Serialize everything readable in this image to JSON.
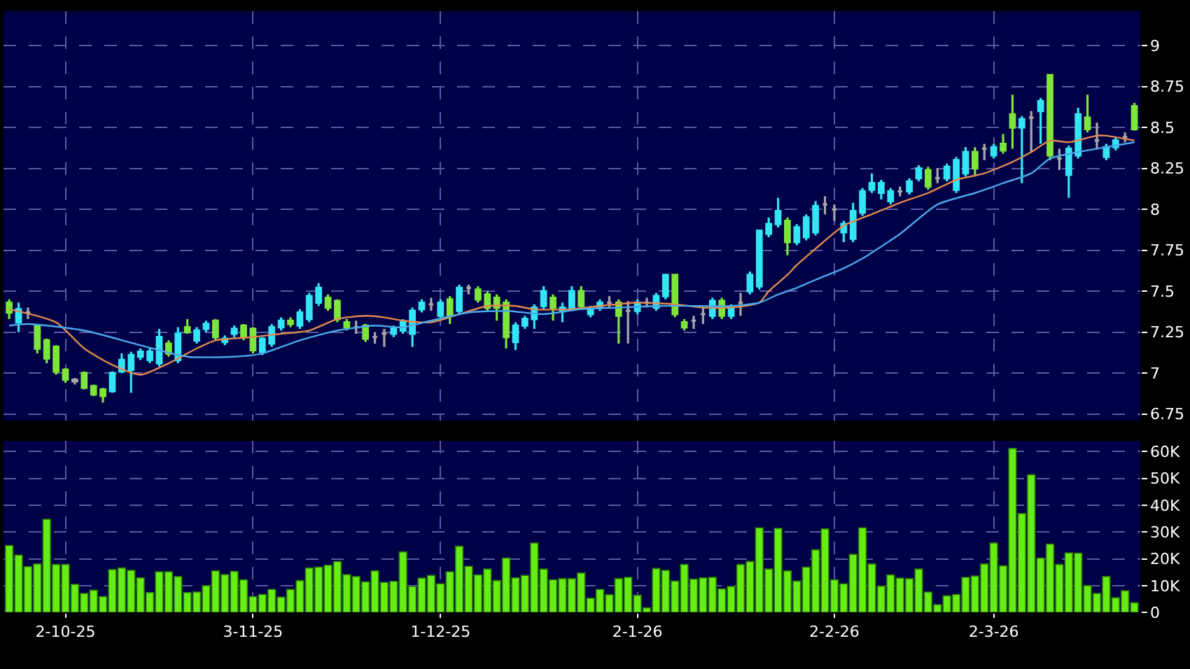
{
  "chart_data": [
    {
      "type": "candlestick",
      "categories": [
        null,
        null,
        null,
        null,
        null,
        null,
        null,
        null,
        null,
        null,
        null,
        null,
        null,
        null,
        null,
        null,
        null,
        null,
        null,
        null,
        null,
        null,
        null,
        null,
        null,
        null,
        null,
        null,
        null,
        null,
        null,
        null,
        null,
        null,
        null,
        null,
        null,
        null,
        null,
        null,
        null,
        null,
        null,
        null,
        null,
        null,
        null,
        null,
        null,
        null,
        null,
        null,
        null,
        null,
        null,
        null,
        null,
        null,
        null,
        null,
        null,
        null,
        null,
        null,
        null,
        null,
        null,
        null,
        null,
        null,
        null,
        null,
        null,
        null,
        null,
        null,
        null,
        null,
        null,
        null,
        null,
        null,
        null,
        null,
        null,
        null,
        null,
        null,
        null,
        null,
        null,
        null,
        null,
        null,
        null,
        null,
        null,
        null,
        null,
        null,
        null,
        null,
        null,
        null,
        null,
        null,
        null,
        null,
        null,
        null,
        null,
        null,
        null,
        null,
        null,
        null,
        null,
        null,
        null,
        null,
        null
      ],
      "ohlc": [
        [
          7.43,
          7.45,
          7.33,
          7.37
        ],
        [
          7.31,
          7.43,
          7.25,
          7.39
        ],
        [
          7.37,
          7.4,
          7.33,
          7.37
        ],
        [
          7.29,
          7.3,
          7.12,
          7.15
        ],
        [
          7.2,
          7.21,
          7.06,
          7.09
        ],
        [
          7.16,
          7.17,
          6.99,
          7.01
        ],
        [
          7.02,
          7.03,
          6.94,
          6.96
        ],
        [
          6.96,
          6.97,
          6.93,
          6.95
        ],
        [
          7.0,
          7.01,
          6.9,
          6.91
        ],
        [
          6.92,
          6.93,
          6.86,
          6.87
        ],
        [
          6.9,
          6.91,
          6.82,
          6.86
        ],
        [
          6.89,
          7.01,
          6.88,
          7.0
        ],
        [
          7.01,
          7.12,
          7.0,
          7.08
        ],
        [
          7.02,
          7.13,
          6.88,
          7.11
        ],
        [
          7.1,
          7.15,
          7.08,
          7.13
        ],
        [
          7.08,
          7.15,
          7.06,
          7.13
        ],
        [
          7.06,
          7.27,
          7.04,
          7.22
        ],
        [
          7.18,
          7.2,
          7.1,
          7.12
        ],
        [
          7.08,
          7.28,
          7.06,
          7.24
        ],
        [
          7.28,
          7.33,
          7.24,
          7.25
        ],
        [
          7.2,
          7.28,
          7.18,
          7.26
        ],
        [
          7.27,
          7.32,
          7.25,
          7.3
        ],
        [
          7.32,
          7.33,
          7.2,
          7.22
        ],
        [
          7.19,
          7.23,
          7.17,
          7.21
        ],
        [
          7.24,
          7.29,
          7.22,
          7.27
        ],
        [
          7.29,
          7.3,
          7.2,
          7.22
        ],
        [
          7.27,
          7.28,
          7.12,
          7.14
        ],
        [
          7.13,
          7.22,
          7.11,
          7.21
        ],
        [
          7.18,
          7.3,
          7.16,
          7.28
        ],
        [
          7.28,
          7.34,
          7.26,
          7.32
        ],
        [
          7.32,
          7.34,
          7.28,
          7.3
        ],
        [
          7.29,
          7.39,
          7.27,
          7.37
        ],
        [
          7.33,
          7.49,
          7.31,
          7.47
        ],
        [
          7.43,
          7.55,
          7.41,
          7.52
        ],
        [
          7.46,
          7.48,
          7.38,
          7.4
        ],
        [
          7.44,
          7.45,
          7.31,
          7.33
        ],
        [
          7.31,
          7.33,
          7.26,
          7.28
        ],
        [
          7.28,
          7.32,
          7.24,
          7.28
        ],
        [
          7.29,
          7.3,
          7.19,
          7.21
        ],
        [
          7.22,
          7.25,
          7.18,
          7.22
        ],
        [
          7.24,
          7.27,
          7.16,
          7.24
        ],
        [
          7.24,
          7.29,
          7.22,
          7.27
        ],
        [
          7.26,
          7.33,
          7.24,
          7.31
        ],
        [
          7.24,
          7.4,
          7.16,
          7.38
        ],
        [
          7.39,
          7.45,
          7.37,
          7.43
        ],
        [
          7.42,
          7.46,
          7.38,
          7.42
        ],
        [
          7.35,
          7.45,
          7.33,
          7.43
        ],
        [
          7.45,
          7.47,
          7.3,
          7.35
        ],
        [
          7.38,
          7.54,
          7.36,
          7.52
        ],
        [
          7.52,
          7.54,
          7.48,
          7.52
        ],
        [
          7.51,
          7.53,
          7.43,
          7.45
        ],
        [
          7.48,
          7.5,
          7.38,
          7.4
        ],
        [
          7.46,
          7.48,
          7.32,
          7.4
        ],
        [
          7.43,
          7.45,
          7.15,
          7.22
        ],
        [
          7.19,
          7.31,
          7.14,
          7.29
        ],
        [
          7.29,
          7.35,
          7.27,
          7.33
        ],
        [
          7.33,
          7.42,
          7.27,
          7.4
        ],
        [
          7.41,
          7.53,
          7.39,
          7.5
        ],
        [
          7.46,
          7.48,
          7.32,
          7.4
        ],
        [
          7.38,
          7.43,
          7.31,
          7.4
        ],
        [
          7.4,
          7.53,
          7.38,
          7.5
        ],
        [
          7.5,
          7.53,
          7.39,
          7.41
        ],
        [
          7.36,
          7.41,
          7.34,
          7.39
        ],
        [
          7.4,
          7.45,
          7.38,
          7.43
        ],
        [
          7.43,
          7.47,
          7.4,
          7.43
        ],
        [
          7.43,
          7.45,
          7.18,
          7.35
        ],
        [
          7.38,
          7.44,
          7.18,
          7.38
        ],
        [
          7.38,
          7.45,
          7.36,
          7.43
        ],
        [
          7.43,
          7.46,
          7.4,
          7.43
        ],
        [
          7.4,
          7.49,
          7.38,
          7.47
        ],
        [
          7.47,
          7.6,
          7.45,
          7.6
        ],
        [
          7.6,
          7.6,
          7.34,
          7.36
        ],
        [
          7.31,
          7.33,
          7.26,
          7.28
        ],
        [
          7.32,
          7.35,
          7.27,
          7.32
        ],
        [
          7.36,
          7.4,
          7.3,
          7.36
        ],
        [
          7.35,
          7.46,
          7.33,
          7.44
        ],
        [
          7.44,
          7.46,
          7.33,
          7.35
        ],
        [
          7.35,
          7.42,
          7.33,
          7.4
        ],
        [
          7.43,
          7.49,
          7.35,
          7.43
        ],
        [
          7.5,
          7.62,
          7.48,
          7.6
        ],
        [
          7.53,
          7.87,
          7.51,
          7.87
        ],
        [
          7.85,
          7.95,
          7.83,
          7.91
        ],
        [
          7.91,
          8.07,
          7.89,
          7.99
        ],
        [
          7.93,
          7.95,
          7.72,
          7.8
        ],
        [
          7.8,
          7.91,
          7.78,
          7.89
        ],
        [
          7.83,
          7.97,
          7.81,
          7.95
        ],
        [
          7.86,
          8.05,
          7.84,
          8.02
        ],
        [
          8.03,
          8.08,
          7.97,
          8.03
        ],
        [
          8.0,
          8.03,
          7.93,
          8.0
        ],
        [
          7.86,
          7.93,
          7.8,
          7.91
        ],
        [
          7.82,
          8.04,
          7.8,
          7.99
        ],
        [
          7.98,
          8.13,
          7.96,
          8.11
        ],
        [
          8.12,
          8.22,
          8.1,
          8.16
        ],
        [
          8.1,
          8.18,
          8.06,
          8.16
        ],
        [
          8.05,
          8.13,
          8.03,
          8.11
        ],
        [
          8.11,
          8.14,
          8.08,
          8.11
        ],
        [
          8.11,
          8.19,
          8.09,
          8.17
        ],
        [
          8.19,
          8.27,
          8.17,
          8.25
        ],
        [
          8.24,
          8.26,
          8.12,
          8.14
        ],
        [
          8.19,
          8.25,
          8.16,
          8.19
        ],
        [
          8.19,
          8.28,
          8.17,
          8.26
        ],
        [
          8.12,
          8.32,
          8.1,
          8.3
        ],
        [
          8.22,
          8.38,
          8.2,
          8.35
        ],
        [
          8.35,
          8.38,
          8.2,
          8.25
        ],
        [
          8.37,
          8.4,
          8.3,
          8.37
        ],
        [
          8.33,
          8.4,
          8.31,
          8.38
        ],
        [
          8.4,
          8.46,
          8.34,
          8.36
        ],
        [
          8.58,
          8.7,
          8.37,
          8.5
        ],
        [
          8.5,
          8.57,
          8.16,
          8.55
        ],
        [
          8.56,
          8.6,
          8.35,
          8.56
        ],
        [
          8.6,
          8.68,
          8.4,
          8.66
        ],
        [
          8.82,
          8.82,
          8.3,
          8.33
        ],
        [
          8.31,
          8.37,
          8.24,
          8.31
        ],
        [
          8.21,
          8.39,
          8.07,
          8.37
        ],
        [
          8.33,
          8.62,
          8.31,
          8.58
        ],
        [
          8.56,
          8.7,
          8.47,
          8.49
        ],
        [
          8.42,
          8.53,
          8.37,
          8.42
        ],
        [
          8.32,
          8.4,
          8.3,
          8.38
        ],
        [
          8.38,
          8.44,
          8.36,
          8.42
        ],
        [
          8.44,
          8.47,
          8.41,
          8.44
        ],
        [
          8.63,
          8.65,
          8.48,
          8.49
        ]
      ],
      "colors": [
        "#7ee63a",
        "#33e5f5",
        "#a8a8a8",
        "#7ee63a",
        "#7ee63a",
        "#7ee63a",
        "#7ee63a",
        "#a8a8a8",
        "#7ee63a",
        "#7ee63a",
        "#7ee63a",
        "#33e5f5",
        "#33e5f5",
        "#33e5f5",
        "#33e5f5",
        "#33e5f5",
        "#33e5f5",
        "#7ee63a",
        "#33e5f5",
        "#7ee63a",
        "#33e5f5",
        "#33e5f5",
        "#7ee63a",
        "#33e5f5",
        "#33e5f5",
        "#7ee63a",
        "#7ee63a",
        "#33e5f5",
        "#33e5f5",
        "#33e5f5",
        "#7ee63a",
        "#33e5f5",
        "#33e5f5",
        "#33e5f5",
        "#7ee63a",
        "#7ee63a",
        "#7ee63a",
        "#a8a8a8",
        "#7ee63a",
        "#a8a8a8",
        "#a8a8a8",
        "#33e5f5",
        "#33e5f5",
        "#33e5f5",
        "#33e5f5",
        "#a8a8a8",
        "#33e5f5",
        "#7ee63a",
        "#33e5f5",
        "#a8a8a8",
        "#7ee63a",
        "#7ee63a",
        "#7ee63a",
        "#7ee63a",
        "#33e5f5",
        "#33e5f5",
        "#33e5f5",
        "#33e5f5",
        "#7ee63a",
        "#33e5f5",
        "#33e5f5",
        "#7ee63a",
        "#33e5f5",
        "#33e5f5",
        "#a8a8a8",
        "#7ee63a",
        "#a8a8a8",
        "#33e5f5",
        "#a8a8a8",
        "#33e5f5",
        "#33e5f5",
        "#7ee63a",
        "#7ee63a",
        "#a8a8a8",
        "#a8a8a8",
        "#33e5f5",
        "#7ee63a",
        "#33e5f5",
        "#a8a8a8",
        "#33e5f5",
        "#33e5f5",
        "#33e5f5",
        "#33e5f5",
        "#7ee63a",
        "#33e5f5",
        "#33e5f5",
        "#33e5f5",
        "#a8a8a8",
        "#a8a8a8",
        "#33e5f5",
        "#33e5f5",
        "#33e5f5",
        "#33e5f5",
        "#33e5f5",
        "#33e5f5",
        "#a8a8a8",
        "#33e5f5",
        "#33e5f5",
        "#7ee63a",
        "#a8a8a8",
        "#33e5f5",
        "#33e5f5",
        "#33e5f5",
        "#7ee63a",
        "#a8a8a8",
        "#33e5f5",
        "#7ee63a",
        "#7ee63a",
        "#33e5f5",
        "#a8a8a8",
        "#33e5f5",
        "#7ee63a",
        "#a8a8a8",
        "#33e5f5",
        "#33e5f5",
        "#7ee63a",
        "#a8a8a8",
        "#33e5f5",
        "#33e5f5",
        "#a8a8a8",
        "#7ee63a"
      ],
      "series": [
        {
          "type": "line",
          "color": "#e08a50",
          "values": [
            7.39,
            null,
            null,
            null,
            null,
            7.31,
            null,
            null,
            7.15,
            null,
            null,
            7.05,
            null,
            null,
            6.99,
            null,
            null,
            7.06,
            null,
            null,
            7.15,
            null,
            7.2,
            null,
            null,
            null,
            7.22,
            null,
            null,
            7.24,
            null,
            null,
            7.26,
            null,
            null,
            7.33,
            null,
            null,
            7.35,
            null,
            7.34,
            null,
            7.32,
            null,
            null,
            7.31,
            null,
            null,
            7.36,
            null,
            null,
            7.41,
            null,
            null,
            7.41,
            null,
            7.39,
            null,
            null,
            null,
            7.39,
            null,
            null,
            7.41,
            null,
            null,
            null,
            7.43,
            null,
            null,
            null,
            7.42,
            null,
            null,
            7.4,
            null,
            null,
            7.4,
            null,
            null,
            7.43,
            7.5,
            null,
            7.6,
            7.66,
            null,
            7.76,
            null,
            null,
            7.9,
            null,
            null,
            7.97,
            null,
            null,
            8.04,
            null,
            null,
            8.1,
            null,
            null,
            8.18,
            null,
            null,
            8.22,
            null,
            null,
            8.29,
            null,
            8.35,
            null,
            8.42,
            null,
            8.41,
            null,
            null,
            8.45,
            8.45,
            null,
            null,
            8.42
          ]
        },
        {
          "type": "line",
          "color": "#4aa8e8",
          "values": [
            7.29,
            null,
            7.3,
            null,
            null,
            null,
            null,
            null,
            7.26,
            null,
            null,
            null,
            null,
            null,
            7.17,
            null,
            null,
            null,
            null,
            7.1,
            null,
            null,
            null,
            null,
            7.1,
            null,
            null,
            7.12,
            null,
            null,
            null,
            7.2,
            null,
            null,
            null,
            7.26,
            null,
            null,
            null,
            7.29,
            null,
            null,
            7.28,
            null,
            null,
            7.32,
            null,
            null,
            null,
            7.37,
            null,
            null,
            null,
            7.38,
            null,
            null,
            null,
            7.36,
            null,
            null,
            null,
            7.39,
            null,
            null,
            null,
            7.4,
            null,
            null,
            null,
            7.41,
            null,
            null,
            null,
            7.41,
            null,
            null,
            null,
            7.41,
            null,
            null,
            7.43,
            null,
            7.48,
            null,
            7.52,
            null,
            7.57,
            null,
            null,
            7.64,
            null,
            7.7,
            null,
            null,
            null,
            7.85,
            null,
            null,
            null,
            8.03,
            null,
            null,
            null,
            8.1,
            null,
            null,
            8.16,
            null,
            null,
            8.22,
            null,
            8.31,
            null,
            null,
            8.35,
            null,
            null,
            8.38,
            null,
            null,
            8.41
          ]
        }
      ],
      "ylim": [
        6.71,
        9.21
      ],
      "yticks": [
        6.75,
        7,
        7.25,
        7.5,
        7.75,
        8,
        8.25,
        8.5,
        8.75,
        9
      ],
      "grid": true,
      "tick_labels": "y"
    },
    {
      "type": "bar",
      "categories": [
        null,
        null,
        null,
        null,
        null,
        null,
        "2-10-25",
        null,
        null,
        null,
        null,
        null,
        null,
        null,
        null,
        null,
        null,
        null,
        null,
        null,
        null,
        null,
        null,
        null,
        null,
        null,
        "3-11-25",
        null,
        null,
        null,
        null,
        null,
        null,
        null,
        null,
        null,
        null,
        null,
        null,
        null,
        null,
        null,
        null,
        null,
        null,
        null,
        "1-12-25",
        null,
        null,
        null,
        null,
        null,
        null,
        null,
        null,
        null,
        null,
        null,
        null,
        null,
        null,
        null,
        null,
        null,
        null,
        null,
        null,
        "2-1-26",
        null,
        null,
        null,
        null,
        null,
        null,
        null,
        null,
        null,
        null,
        null,
        null,
        null,
        null,
        null,
        null,
        null,
        null,
        null,
        null,
        "2-2-26",
        null,
        null,
        null,
        null,
        null,
        null,
        null,
        null,
        null,
        null,
        null,
        null,
        null,
        null,
        null,
        null,
        "2-3-26",
        null,
        null,
        null,
        null,
        null,
        null,
        null,
        null,
        null,
        null,
        null,
        null,
        null,
        null,
        null
      ],
      "values": [
        25000,
        21400,
        17100,
        18100,
        34800,
        17900,
        17900,
        10500,
        7100,
        8300,
        5900,
        16000,
        16600,
        15700,
        12900,
        7400,
        15200,
        15200,
        13400,
        7400,
        7600,
        10000,
        15500,
        14100,
        15300,
        12200,
        5900,
        6700,
        8600,
        5700,
        8600,
        11900,
        16600,
        16900,
        17600,
        19000,
        14100,
        13400,
        11400,
        15500,
        11200,
        11600,
        22600,
        9700,
        12800,
        13800,
        10700,
        15200,
        24700,
        17200,
        14000,
        16200,
        11900,
        20300,
        12900,
        13800,
        25900,
        16200,
        12200,
        12600,
        12600,
        14700,
        5300,
        8600,
        6600,
        12600,
        13100,
        6400,
        1700,
        16400,
        15700,
        11700,
        17900,
        12400,
        12900,
        13100,
        8800,
        9700,
        17900,
        19000,
        31600,
        16200,
        31400,
        15500,
        11700,
        16900,
        23400,
        31200,
        12200,
        10700,
        21700,
        31600,
        18100,
        9800,
        14000,
        12800,
        12600,
        16200,
        7600,
        2900,
        6200,
        6700,
        13100,
        13600,
        18100,
        25900,
        17400,
        61200,
        36900,
        51400,
        20300,
        25500,
        17900,
        22200,
        22100,
        10000,
        7100,
        13400,
        5500,
        8100,
        3600
      ],
      "color": "#66ee14",
      "ylim": [
        0,
        64000
      ],
      "yticks": [
        0,
        {
          "value": 10000,
          "label": "10K"
        },
        {
          "value": 20000,
          "label": "20K"
        },
        {
          "value": 30000,
          "label": "30K"
        },
        {
          "value": 40000,
          "label": "40K"
        },
        {
          "value": 50000,
          "label": "50K"
        },
        {
          "value": 60000,
          "label": "60K"
        }
      ],
      "grid": true
    }
  ]
}
